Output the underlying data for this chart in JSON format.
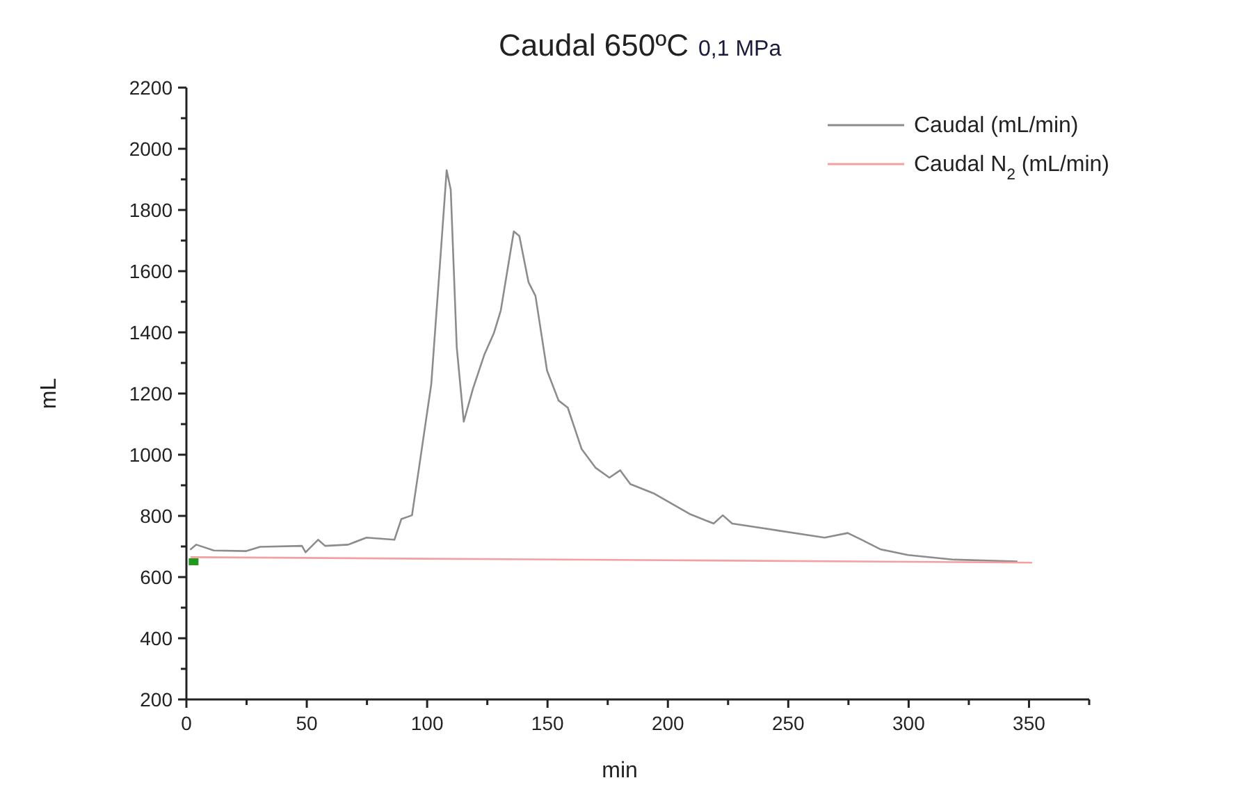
{
  "chart_data": {
    "type": "line",
    "title": "Caudal 650ºC",
    "subtitle": "0,1 MPa",
    "xlabel": "min",
    "ylabel": "mL",
    "xlim": [
      0,
      375
    ],
    "ylim": [
      200,
      2200
    ],
    "xticks": [
      0,
      {
        "value": 25,
        "label": null
      },
      50,
      {
        "value": 75,
        "label": null
      },
      100,
      {
        "value": 125,
        "label": null
      },
      150,
      {
        "value": 175,
        "label": null
      },
      200,
      {
        "value": 225,
        "label": null
      },
      250,
      {
        "value": 275,
        "label": null
      },
      300,
      {
        "value": 325,
        "label": null
      },
      350,
      {
        "value": 375,
        "label": null
      }
    ],
    "yticks": [
      200,
      {
        "value": 300,
        "label": null
      },
      400,
      {
        "value": 500,
        "label": null
      },
      600,
      {
        "value": 700,
        "label": null
      },
      800,
      {
        "value": 900,
        "label": null
      },
      1000,
      {
        "value": 1100,
        "label": null
      },
      1200,
      {
        "value": 1300,
        "label": null
      },
      1400,
      {
        "value": 1500,
        "label": null
      },
      1600,
      {
        "value": 1700,
        "label": null
      },
      1800,
      {
        "value": 1900,
        "label": null
      },
      2000,
      {
        "value": 2100,
        "label": null
      },
      2200
    ],
    "grid": false,
    "legend": "top right",
    "marker": "none",
    "line_style": "solid",
    "series": [
      {
        "name": "Caudal (mL/min)",
        "color": "#8c8c8c",
        "x": [
          1.8,
          4.1,
          11.4,
          24.9,
          30.6,
          48,
          49.5,
          54.7,
          57.6,
          67.2,
          74.8,
          86.4,
          89.3,
          93.7,
          96.9,
          101.7,
          105.6,
          108.1,
          109.8,
          112.3,
          115.2,
          119,
          123.8,
          127.7,
          130.6,
          136,
          138.3,
          142.1,
          145,
          149.8,
          154.6,
          158.4,
          164.2,
          170,
          175.7,
          180.2,
          184.4,
          194,
          209.4,
          219,
          222.8,
          226.7,
          245.9,
          265.1,
          274.7,
          280.5,
          288.2,
          299.7,
          318.9,
          344.9
        ],
        "values": [
          691,
          706,
          687,
          685,
          699,
          702,
          681,
          722,
          702,
          706,
          729,
          722,
          790,
          802,
          972,
          1230,
          1654,
          1930,
          1866,
          1351,
          1108,
          1215,
          1328,
          1397,
          1472,
          1730,
          1715,
          1564,
          1519,
          1275,
          1177,
          1154,
          1018,
          957,
          925,
          949,
          904,
          874,
          805,
          775,
          802,
          775,
          752,
          729,
          744,
          722,
          691,
          672,
          657,
          651
        ]
      },
      {
        "name": "Caudal N$_{2}$ (mL/min)",
        "color": "#f4a0a0",
        "x": [
          2,
          100,
          200,
          300,
          351
        ],
        "values": [
          665,
          660,
          655,
          650,
          647
        ]
      },
      {
        "type": "scatter",
        "marker": "square",
        "color": "#1f9a1f",
        "x": [
          3
        ],
        "values": [
          650
        ]
      }
    ]
  }
}
